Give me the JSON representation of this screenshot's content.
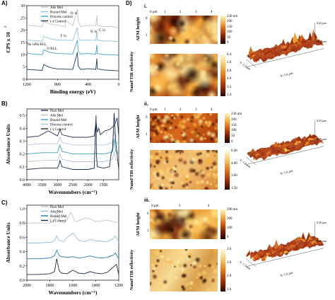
{
  "panels": {
    "A": {
      "letter": "A)",
      "ylabel": "CPS x 10",
      "ylabel_exp": "3",
      "xlabel": "Binding energy (eV)",
      "yticks": [
        "0",
        "5",
        "10",
        "15",
        "20",
        "25",
        "30"
      ],
      "xticks": [
        "1200",
        "800",
        "400",
        "0"
      ],
      "legend": [
        "Ads Mel",
        "Bound Mel",
        "Process control",
        "(-) Control"
      ],
      "legend_colors": [
        "#b9c6d4",
        "#8cc6dc",
        "#3fa6c4",
        "#1a3f57"
      ],
      "peak_labels": [
        "O 1s",
        "C 1s",
        "N 1s",
        "F 1s",
        "Na KLL",
        "Na 1s",
        "O KLL"
      ]
    },
    "B": {
      "letter": "B)",
      "ylabel": "Absorbance Units",
      "xlabel": "Wavenumbers (cm⁻¹)",
      "yticks": [
        "0.0",
        "0.1",
        "0.2",
        "0.3",
        "0.4",
        "0.5"
      ],
      "xticks": [
        "4000",
        "3500",
        "3000",
        "2500",
        "2000",
        "1500"
      ],
      "legend": [
        "Pure Mel",
        "Ads Mel",
        "Bound Mel",
        "Process control",
        "(-) Control"
      ],
      "legend_colors": [
        "#2a2f5a",
        "#b6c3d6",
        "#3d9fbf",
        "#b5c4d4",
        "#1a2b45"
      ]
    },
    "C": {
      "letter": "C)",
      "ylabel": "Absorbance Units",
      "xlabel": "Wavenumbers (cm⁻¹)",
      "yticks": [
        "0.0",
        "0.2",
        "0.4",
        "0.6",
        "0.8",
        "1.0"
      ],
      "xticks": [
        "2000",
        "1800",
        "1600",
        "1400",
        "1200"
      ],
      "legend": [
        "Pure Mel",
        "Ads Mel",
        "Bound Mel",
        "(-) Control"
      ],
      "legend_colors": [
        "#b9c6d4",
        "#8cbfd8",
        "#1e7ea6",
        "#1a2b45"
      ]
    },
    "D": {
      "letter": "D)",
      "afm_label": "AFM height",
      "nano_label": "NanoFTIR reflectivity",
      "sub_i": "i.",
      "sub_ii": "ii.",
      "sub_iii": "iii.",
      "i": {
        "axis_top": [
          "0 µm",
          "1",
          "2",
          "3",
          "4"
        ],
        "axis_side": [
          "0",
          "1"
        ],
        "afm_scale": [
          "230 nm",
          "200",
          "150",
          "100",
          "50",
          "0"
        ],
        "nano_scale": [
          "6.4",
          "5.6",
          "4.8",
          "4.0",
          "3.2",
          "2.4"
        ],
        "iso_z": [
          "0.22 µm",
          "0.00 µm"
        ],
        "iso_y": "Y: 2.3 µm",
        "iso_x": "X: 5.0 µm"
      },
      "ii": {
        "axis_top": [
          "0 µm",
          "1",
          "2",
          "3",
          "4"
        ],
        "axis_side": [
          "0",
          "1"
        ],
        "afm_scale": [
          "230 nm",
          "200",
          "150",
          "100",
          "50",
          "0"
        ],
        "nano_scale": [
          "6.40",
          "4.00",
          "3.00",
          "1.50"
        ],
        "iso_z": [
          "0.23 µm",
          "0.00 µm"
        ],
        "iso_y": "Y: 1.8 µm",
        "iso_x": "X: 5.0 µm"
      },
      "iii": {
        "axis_top": [
          "0 µm",
          "2",
          "4"
        ],
        "axis_side": [
          "0",
          "1"
        ],
        "afm_scale": [
          "290 nm",
          "200",
          "100",
          "0"
        ],
        "nano_scale": [
          "3.6",
          "3.0",
          "2.0",
          "1.6"
        ],
        "iso_z": [
          "0.29 µm",
          "0.00 µm"
        ],
        "iso_y": "Y: 1.5 µm",
        "iso_x": "X: 5.0 µm"
      }
    }
  },
  "chart_data": [
    {
      "type": "line",
      "panel": "A",
      "xlabel": "Binding energy (eV)",
      "ylabel": "CPS x 10^3",
      "xlim": [
        1200,
        0
      ],
      "ylim": [
        0,
        30
      ],
      "series": [
        {
          "name": "Ads Mel",
          "x": [
            1200,
            1000,
            980,
            900,
            800,
            700,
            690,
            600,
            540,
            530,
            500,
            400,
            300,
            285,
            280,
            200,
            100,
            0
          ],
          "y": [
            22,
            21.5,
            23.5,
            22.5,
            22,
            21.5,
            24,
            21.8,
            28.5,
            24,
            21.5,
            22,
            21.8,
            26,
            22,
            21.5,
            21.5,
            21
          ]
        },
        {
          "name": "Bound Mel",
          "x": [
            1200,
            1000,
            980,
            900,
            800,
            600,
            540,
            530,
            500,
            400,
            300,
            285,
            280,
            200,
            100,
            0
          ],
          "y": [
            16,
            15.5,
            17.5,
            16.5,
            16,
            15.8,
            21,
            17,
            15.8,
            16,
            15.8,
            19.5,
            16,
            15.6,
            15.6,
            15.3
          ]
        },
        {
          "name": "Process control",
          "x": [
            1200,
            1000,
            980,
            900,
            800,
            600,
            540,
            530,
            500,
            400,
            300,
            285,
            280,
            200,
            100,
            0
          ],
          "y": [
            10.5,
            10,
            12,
            11,
            10.5,
            10.3,
            16,
            11.5,
            10.3,
            10.5,
            10.2,
            14,
            10.5,
            10.1,
            10,
            9.8
          ]
        },
        {
          "name": "(-) Control",
          "x": [
            1200,
            1000,
            980,
            900,
            800,
            600,
            540,
            530,
            500,
            400,
            300,
            285,
            280,
            200,
            100,
            0
          ],
          "y": [
            4,
            3.6,
            6,
            4.8,
            4.2,
            4,
            11,
            5.5,
            4,
            4.3,
            4,
            8.5,
            4.2,
            3.8,
            3.6,
            3.4
          ]
        }
      ]
    },
    {
      "type": "line",
      "panel": "B",
      "xlabel": "Wavenumbers (cm-1)",
      "ylabel": "Absorbance Units",
      "xlim": [
        4000,
        1000
      ],
      "ylim": [
        0,
        0.55
      ],
      "series": [
        {
          "name": "Pure Mel",
          "x": [
            4000,
            3600,
            3300,
            3000,
            2950,
            2920,
            2850,
            2500,
            2000,
            1800,
            1740,
            1700,
            1650,
            1600,
            1450,
            1300,
            1150,
            1100,
            1050,
            1000
          ],
          "y": [
            0.33,
            0.34,
            0.38,
            0.34,
            0.37,
            0.39,
            0.35,
            0.33,
            0.33,
            0.34,
            0.45,
            0.37,
            0.4,
            0.35,
            0.38,
            0.39,
            0.42,
            0.45,
            0.48,
            0.34
          ]
        },
        {
          "name": "Ads Mel",
          "x": [
            4000,
            3500,
            3000,
            2950,
            2920,
            2850,
            2500,
            2000,
            1800,
            1740,
            1700,
            1500,
            1300,
            1200,
            1150,
            1100,
            1000
          ],
          "y": [
            0.27,
            0.28,
            0.28,
            0.31,
            0.33,
            0.29,
            0.27,
            0.27,
            0.27,
            0.28,
            0.27,
            0.27,
            0.28,
            0.29,
            0.38,
            0.3,
            0.27
          ]
        },
        {
          "name": "Bound Mel",
          "x": [
            4000,
            3500,
            3000,
            2950,
            2920,
            2850,
            2500,
            2000,
            1800,
            1740,
            1700,
            1500,
            1300,
            1200,
            1150,
            1100,
            1000
          ],
          "y": [
            0.2,
            0.21,
            0.21,
            0.25,
            0.27,
            0.22,
            0.2,
            0.2,
            0.2,
            0.21,
            0.2,
            0.2,
            0.21,
            0.22,
            0.32,
            0.22,
            0.2
          ]
        },
        {
          "name": "Process control",
          "x": [
            4000,
            3500,
            3000,
            2950,
            2920,
            2850,
            2500,
            2000,
            1800,
            1740,
            1700,
            1500,
            1300,
            1200,
            1150,
            1100,
            1000
          ],
          "y": [
            0.14,
            0.15,
            0.15,
            0.18,
            0.2,
            0.16,
            0.14,
            0.14,
            0.14,
            0.15,
            0.14,
            0.14,
            0.15,
            0.16,
            0.22,
            0.16,
            0.14
          ]
        },
        {
          "name": "(-) Control",
          "x": [
            4000,
            3500,
            3000,
            2950,
            2920,
            2850,
            2500,
            2000,
            1800,
            1740,
            1730,
            1700,
            1500,
            1300,
            1250,
            1200,
            1150,
            1100,
            1000
          ],
          "y": [
            0.08,
            0.09,
            0.09,
            0.12,
            0.15,
            0.1,
            0.08,
            0.08,
            0.09,
            0.5,
            0.2,
            0.1,
            0.09,
            0.1,
            0.2,
            0.24,
            0.52,
            0.3,
            0.08
          ]
        }
      ]
    },
    {
      "type": "line",
      "panel": "C",
      "xlabel": "Wavenumbers (cm-1)",
      "ylabel": "Absorbance Units",
      "xlim": [
        2000,
        1200
      ],
      "ylim": [
        0,
        1.05
      ],
      "series": [
        {
          "name": "Pure Mel",
          "x": [
            2000,
            1900,
            1800,
            1760,
            1740,
            1720,
            1680,
            1650,
            1620,
            1580,
            1550,
            1500,
            1450,
            1400,
            1350,
            1300,
            1250,
            1200
          ],
          "y": [
            0.8,
            0.8,
            0.8,
            0.83,
            0.98,
            0.85,
            0.8,
            0.84,
            0.95,
            0.82,
            0.83,
            0.87,
            0.86,
            0.82,
            0.83,
            0.84,
            0.82,
            0.8
          ]
        },
        {
          "name": "Ads Mel",
          "x": [
            2000,
            1900,
            1800,
            1760,
            1740,
            1720,
            1680,
            1650,
            1600,
            1550,
            1500,
            1450,
            1400,
            1300,
            1250,
            1230,
            1200
          ],
          "y": [
            0.52,
            0.52,
            0.53,
            0.55,
            0.62,
            0.56,
            0.54,
            0.6,
            0.66,
            0.56,
            0.54,
            0.57,
            0.55,
            0.54,
            0.58,
            0.62,
            0.54
          ]
        },
        {
          "name": "Bound Mel",
          "x": [
            2000,
            1900,
            1800,
            1760,
            1740,
            1720,
            1700,
            1650,
            1600,
            1550,
            1500,
            1450,
            1400,
            1350,
            1300,
            1250,
            1230,
            1200
          ],
          "y": [
            0.3,
            0.3,
            0.31,
            0.34,
            0.42,
            0.35,
            0.33,
            0.32,
            0.33,
            0.31,
            0.32,
            0.34,
            0.32,
            0.31,
            0.32,
            0.35,
            0.38,
            0.3
          ]
        },
        {
          "name": "(-) Control",
          "x": [
            2000,
            1900,
            1800,
            1760,
            1740,
            1720,
            1700,
            1650,
            1600,
            1550,
            1500,
            1450,
            1400,
            1350,
            1300,
            1250,
            1220,
            1200
          ],
          "y": [
            0.08,
            0.08,
            0.09,
            0.12,
            0.3,
            0.14,
            0.1,
            0.09,
            0.14,
            0.1,
            0.09,
            0.12,
            0.1,
            0.09,
            0.11,
            0.18,
            0.22,
            0.08
          ]
        }
      ]
    }
  ]
}
